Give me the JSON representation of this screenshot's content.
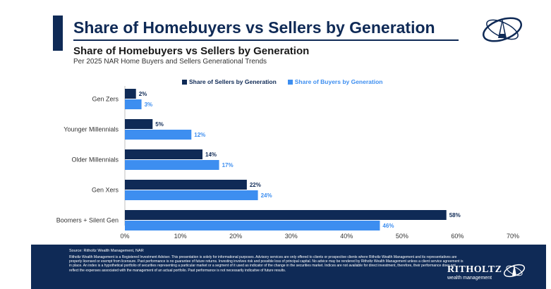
{
  "header": {
    "main_title": "Share of Homebuyers vs Sellers by Generation"
  },
  "colors": {
    "primary": "#0f2a56",
    "sellers": "#0f2a56",
    "buyers": "#3d8ef0"
  },
  "chart_data": {
    "type": "bar",
    "orientation": "horizontal",
    "title": "Share of Homebuyers vs Sellers by Generation",
    "subtitle": "Per 2025 NAR Home Buyers and Sellers Generational Trends",
    "categories": [
      "Gen Zers",
      "Younger Millennials",
      "Older Millennials",
      "Gen Xers",
      "Boomers + Silent Gen"
    ],
    "series": [
      {
        "name": "Share of Sellers by Generation",
        "values": [
          2,
          5,
          14,
          22,
          58
        ],
        "labels": [
          "2%",
          "5%",
          "14%",
          "22%",
          "58%"
        ],
        "color": "#0f2a56"
      },
      {
        "name": "Share of Buyers by Generation",
        "values": [
          3,
          12,
          17,
          24,
          46
        ],
        "labels": [
          "3%",
          "12%",
          "17%",
          "24%",
          "46%"
        ],
        "color": "#3d8ef0"
      }
    ],
    "xlim": [
      0,
      70
    ],
    "xticks": [
      "0%",
      "10%",
      "20%",
      "30%",
      "40%",
      "50%",
      "60%",
      "70%"
    ],
    "grid": false,
    "legend_position": "top"
  },
  "footer": {
    "source": "Source: Ritholtz Wealth Management, NAR",
    "disclaimer": "Ritholtz Wealth Management is a Registered Investment Adviser. This presentation is solely for informational purposes. Advisory services are only offered to clients or prospective clients where Ritholtz Wealth Management and its representatives are properly licensed or exempt from licensure. Past performance is no guarantee of future returns. Investing involves risk and possible loss of principal capital. No advice may be rendered by Ritholtz Wealth Management unless a client service agreement is in place. An index is a hypothetical portfolio of securities representing a particular market or a segment of it used as indicator of the change in the securities market. Indices are not available for direct investment, therefore, their performance does not reflect the expenses associated with the management of an actual portfolio. Past performance is not necessarily indicative of future results.",
    "logo_text": "RITHOLTZ",
    "logo_sub": "wealth management"
  }
}
